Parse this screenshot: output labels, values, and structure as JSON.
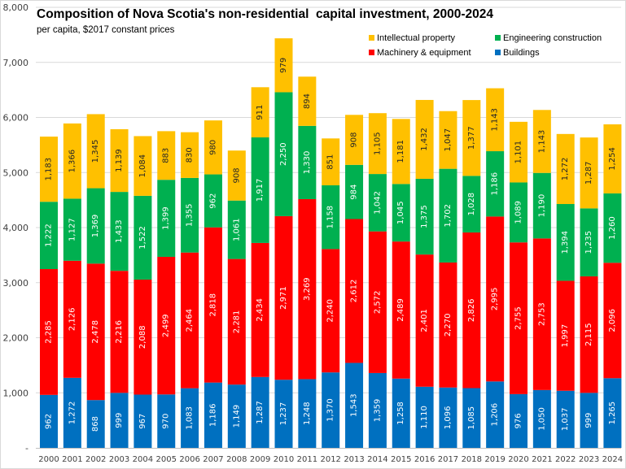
{
  "chart_data": {
    "type": "bar",
    "stacked": true,
    "title": "Composition of Nova Scotia's non-residential  capital investment, 2000-2024",
    "subtitle": "per capita, $2017 constant prices",
    "xlabel": "",
    "ylabel": "",
    "ylim": [
      0,
      8000
    ],
    "yticks": [
      0,
      1000,
      2000,
      3000,
      4000,
      5000,
      6000,
      7000,
      8000
    ],
    "ytick_labels": [
      "-",
      "1,000",
      "2,000",
      "3,000",
      "4,000",
      "5,000",
      "6,000",
      "7,000",
      "8,000"
    ],
    "grid": true,
    "legend_position": "top-right",
    "categories": [
      "2000",
      "2001",
      "2002",
      "2003",
      "2004",
      "2005",
      "2006",
      "2007",
      "2008",
      "2009",
      "2010",
      "2011",
      "2012",
      "2013",
      "2014",
      "2015",
      "2016",
      "2017",
      "2018",
      "2019",
      "2020",
      "2021",
      "2022",
      "2023",
      "2024"
    ],
    "series": [
      {
        "name": "Buildings",
        "color": "#0070c0",
        "label_color": "#ffffff",
        "values": [
          962,
          1272,
          868,
          999,
          967,
          970,
          1083,
          1186,
          1149,
          1287,
          1237,
          1248,
          1370,
          1543,
          1359,
          1258,
          1110,
          1096,
          1085,
          1206,
          976,
          1050,
          1037,
          999,
          1265
        ]
      },
      {
        "name": "Machinery & equipment",
        "color": "#ff0000",
        "label_color": "#ffffff",
        "values": [
          2285,
          2126,
          2478,
          2216,
          2088,
          2499,
          2464,
          2818,
          2281,
          2434,
          2971,
          3269,
          2240,
          2612,
          2572,
          2489,
          2401,
          2270,
          2826,
          2995,
          2755,
          2753,
          1997,
          2115,
          2096
        ]
      },
      {
        "name": "Engineering construction",
        "color": "#00b050",
        "label_color": "#ffffff",
        "values": [
          1222,
          1127,
          1369,
          1433,
          1522,
          1399,
          1355,
          962,
          1061,
          1917,
          2250,
          1330,
          1158,
          984,
          1042,
          1045,
          1375,
          1702,
          1028,
          1186,
          1089,
          1190,
          1394,
          1235,
          1260
        ]
      },
      {
        "name": "Intellectual property",
        "color": "#ffc000",
        "label_color": "#262626",
        "values": [
          1183,
          1366,
          1345,
          1139,
          1084,
          883,
          830,
          980,
          908,
          911,
          979,
          894,
          851,
          908,
          1105,
          1181,
          1432,
          1047,
          1377,
          1143,
          1101,
          1143,
          1272,
          1287,
          1254
        ]
      }
    ],
    "legend_order": [
      "Intellectual property",
      "Engineering construction",
      "Machinery & equipment",
      "Buildings"
    ]
  }
}
